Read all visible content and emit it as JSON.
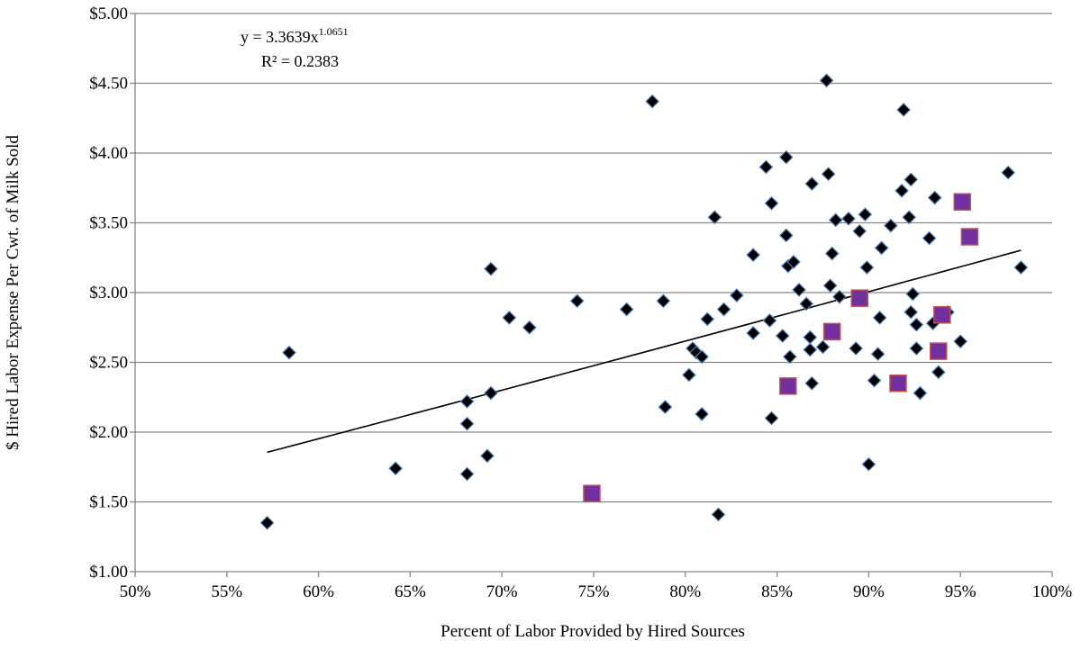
{
  "chart_data": {
    "type": "scatter",
    "xlabel": "Percent of Labor Provided by Hired Sources",
    "ylabel": "$ Hired Labor Expense Per Cwt. of Milk Sold",
    "xlim": [
      0.5,
      1.0
    ],
    "ylim": [
      1.0,
      5.0
    ],
    "x_ticks": [
      0.5,
      0.55,
      0.6,
      0.65,
      0.7,
      0.75,
      0.8,
      0.85,
      0.9,
      0.95,
      1.0
    ],
    "x_tick_labels": [
      "50%",
      "55%",
      "60%",
      "65%",
      "70%",
      "75%",
      "80%",
      "85%",
      "90%",
      "95%",
      "100%"
    ],
    "y_ticks": [
      1.0,
      1.5,
      2.0,
      2.5,
      3.0,
      3.5,
      4.0,
      4.5,
      5.0
    ],
    "y_tick_labels": [
      "$1.00",
      "$1.50",
      "$2.00",
      "$2.50",
      "$3.00",
      "$3.50",
      "$4.00",
      "$4.50",
      "$5.00"
    ],
    "grid": "horizontal",
    "legend": "none",
    "trendline": {
      "kind": "power",
      "a": 3.3639,
      "b": 1.0651,
      "x_range": [
        0.572,
        0.983
      ],
      "color": "#000000"
    },
    "equation": {
      "prefix": "y = 3.3639x",
      "exponent": "1.0651",
      "r2": "R² = 0.2383"
    },
    "series": [
      {
        "marker": "diamond",
        "color": "#000000",
        "edge_color": "#4a7ebb",
        "points": [
          [
            0.572,
            1.35
          ],
          [
            0.584,
            2.57
          ],
          [
            0.642,
            1.74
          ],
          [
            0.681,
            2.22
          ],
          [
            0.681,
            2.06
          ],
          [
            0.681,
            1.7
          ],
          [
            0.692,
            1.83
          ],
          [
            0.694,
            3.17
          ],
          [
            0.694,
            2.28
          ],
          [
            0.704,
            2.82
          ],
          [
            0.715,
            2.75
          ],
          [
            0.741,
            2.94
          ],
          [
            0.768,
            2.88
          ],
          [
            0.782,
            4.37
          ],
          [
            0.788,
            2.94
          ],
          [
            0.789,
            2.18
          ],
          [
            0.802,
            2.41
          ],
          [
            0.804,
            2.6
          ],
          [
            0.806,
            2.57
          ],
          [
            0.809,
            2.54
          ],
          [
            0.809,
            2.13
          ],
          [
            0.812,
            2.81
          ],
          [
            0.816,
            3.54
          ],
          [
            0.818,
            1.41
          ],
          [
            0.821,
            2.88
          ],
          [
            0.828,
            2.98
          ],
          [
            0.837,
            3.27
          ],
          [
            0.837,
            2.71
          ],
          [
            0.844,
            3.9
          ],
          [
            0.846,
            2.8
          ],
          [
            0.847,
            3.64
          ],
          [
            0.847,
            2.1
          ],
          [
            0.853,
            2.69
          ],
          [
            0.855,
            3.97
          ],
          [
            0.855,
            3.41
          ],
          [
            0.856,
            3.19
          ],
          [
            0.857,
            2.54
          ],
          [
            0.859,
            3.22
          ],
          [
            0.862,
            3.02
          ],
          [
            0.866,
            2.92
          ],
          [
            0.868,
            2.68
          ],
          [
            0.868,
            2.59
          ],
          [
            0.869,
            3.78
          ],
          [
            0.869,
            2.35
          ],
          [
            0.875,
            2.61
          ],
          [
            0.877,
            4.52
          ],
          [
            0.878,
            3.85
          ],
          [
            0.879,
            3.05
          ],
          [
            0.88,
            3.28
          ],
          [
            0.882,
            3.52
          ],
          [
            0.884,
            2.97
          ],
          [
            0.889,
            3.53
          ],
          [
            0.893,
            2.6
          ],
          [
            0.895,
            3.44
          ],
          [
            0.898,
            3.56
          ],
          [
            0.899,
            3.18
          ],
          [
            0.9,
            1.77
          ],
          [
            0.903,
            2.37
          ],
          [
            0.905,
            2.56
          ],
          [
            0.906,
            2.82
          ],
          [
            0.907,
            3.32
          ],
          [
            0.912,
            3.48
          ],
          [
            0.918,
            3.73
          ],
          [
            0.919,
            4.31
          ],
          [
            0.922,
            3.54
          ],
          [
            0.923,
            3.81
          ],
          [
            0.923,
            2.86
          ],
          [
            0.924,
            2.99
          ],
          [
            0.926,
            2.77
          ],
          [
            0.926,
            2.6
          ],
          [
            0.928,
            2.28
          ],
          [
            0.933,
            3.39
          ],
          [
            0.935,
            2.78
          ],
          [
            0.936,
            3.68
          ],
          [
            0.938,
            2.43
          ],
          [
            0.943,
            2.86
          ],
          [
            0.95,
            2.65
          ],
          [
            0.976,
            3.86
          ],
          [
            0.983,
            3.18
          ]
        ]
      },
      {
        "marker": "square",
        "color": "#7030a0",
        "edge_color": "#c0504d",
        "points": [
          [
            0.749,
            1.56
          ],
          [
            0.856,
            2.33
          ],
          [
            0.88,
            2.72
          ],
          [
            0.895,
            2.96
          ],
          [
            0.916,
            2.35
          ],
          [
            0.938,
            2.58
          ],
          [
            0.94,
            2.84
          ],
          [
            0.951,
            3.65
          ],
          [
            0.955,
            3.4
          ]
        ]
      }
    ]
  }
}
